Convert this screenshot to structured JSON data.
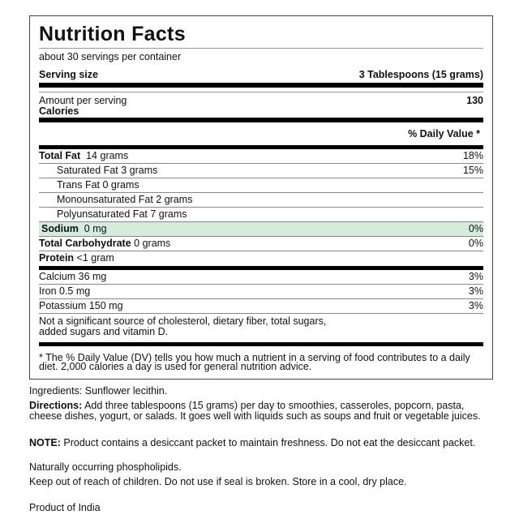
{
  "label": {
    "title": "Nutrition Facts",
    "servings": "about 30 servings per container",
    "serving_size_label": "Serving size",
    "serving_size_value": "3 Tablespoons (15 grams)",
    "amount_per_serving": "Amount per serving",
    "calories_label": "Calories",
    "calories_value": "130",
    "dv_header": "% Daily Value *",
    "nutrients": [
      {
        "name": "Total Fat",
        "amount": "14 grams",
        "dv": "18%"
      },
      {
        "name": "Saturated Fat 3 grams",
        "dv": "15%"
      },
      {
        "name": "Trans Fat 0 grams"
      },
      {
        "name": "Monounsaturated Fat 2 grams"
      },
      {
        "name": "Polyunsaturated Fat 7 grams"
      },
      {
        "name": "Sodium",
        "amount": "0 mg",
        "dv": "0%"
      },
      {
        "name": "Total Carbohydrate",
        "amount": "0 grams",
        "dv": "0%"
      },
      {
        "name": "Protein",
        "amount": "<1 gram"
      }
    ],
    "minerals": [
      {
        "name": "Calcium 36 mg",
        "dv": "3%"
      },
      {
        "name": "Iron 0.5 mg",
        "dv": "3%"
      },
      {
        "name": "Potassium 150 mg",
        "dv": "3%"
      }
    ],
    "not_significant": "Not a significant source of cholesterol, dietary fiber, total sugars, added sugars and vitamin D.",
    "footnote": "* The % Daily Value (DV) tells you how much a nutrient in a serving of food contributes to a daily diet. 2,000 calories a day is used for general nutrition advice.",
    "highlight_color": "#d4ecdb"
  },
  "info": {
    "ingredients": "Ingredients: Sunflower lecithin.",
    "directions_label": "Directions:",
    "directions": " Add three tablespoons (15 grams) per day to smoothies, casseroles, popcorn, pasta, cheese dishes, yogurt, or salads. It goes well with liquids such as soups and fruit or vegetable juices.",
    "note_label": "NOTE:",
    "note": " Product contains a desiccant packet to maintain freshness. Do not eat the desiccant packet.",
    "phospholipids": "Naturally occurring phospholipids.",
    "storage": "Keep out of reach of children. Do not use if seal is broken. Store in a cool, dry place.",
    "origin": "Product of India"
  }
}
